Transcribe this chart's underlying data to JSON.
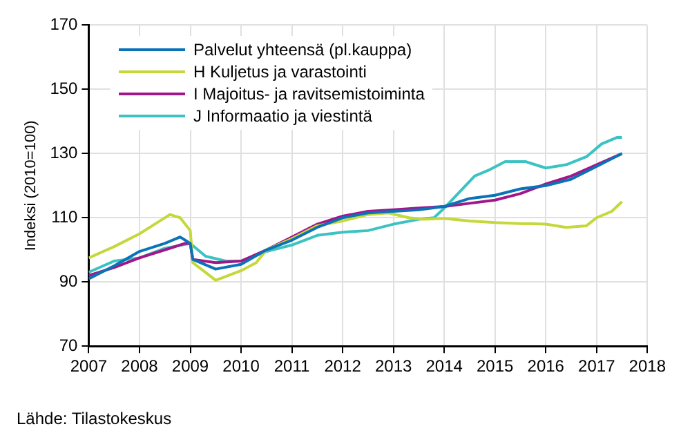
{
  "chart_data": {
    "type": "line",
    "ylabel": "Indeksi (2010=100)",
    "annotations": [
      "Lähde: Tilastokeskus"
    ],
    "xlim": [
      2007,
      2018
    ],
    "xticks": [
      2007,
      2008,
      2009,
      2010,
      2011,
      2012,
      2013,
      2014,
      2015,
      2016,
      2017,
      2018
    ],
    "ylim": [
      70,
      170
    ],
    "yticks": [
      70,
      90,
      110,
      130,
      150,
      170
    ],
    "grid": true,
    "legend": "top left",
    "marker": "none",
    "line_style": "solid",
    "series": [
      {
        "name": "Palvelut yhteensä (pl.kauppa)",
        "color": "#0a73b8",
        "x": [
          2007,
          2007.5,
          2008,
          2008.5,
          2008.8,
          2009,
          2009.05,
          2009.5,
          2010,
          2010.5,
          2011,
          2011.5,
          2012,
          2012.5,
          2013,
          2013.5,
          2014,
          2014.5,
          2015,
          2015.5,
          2016,
          2016.5,
          2017,
          2017.5
        ],
        "values": [
          91,
          95,
          99.5,
          102,
          104,
          102,
          97,
          94,
          95.5,
          100,
          103,
          107,
          110,
          111.5,
          112,
          112.5,
          113.5,
          116,
          117,
          119,
          120,
          122,
          126,
          130
        ]
      },
      {
        "name": "H Kuljetus ja varastointi",
        "color": "#c4d83a",
        "x": [
          2007,
          2007.5,
          2008,
          2008.3,
          2008.6,
          2008.8,
          2009,
          2009.05,
          2009.3,
          2009.5,
          2010,
          2010.3,
          2010.5,
          2011,
          2011.5,
          2012,
          2012.5,
          2012.9,
          2013.3,
          2013.6,
          2014,
          2014.5,
          2015,
          2015.5,
          2016,
          2016.4,
          2016.8,
          2017,
          2017.3,
          2017.5
        ],
        "values": [
          97.5,
          101,
          105,
          108,
          111,
          110,
          106,
          96,
          93,
          90.5,
          93.5,
          96,
          100,
          103.5,
          107.5,
          109,
          111,
          111.5,
          110,
          109.5,
          109.8,
          109,
          108.5,
          108.2,
          108,
          107,
          107.5,
          110,
          112,
          115
        ]
      },
      {
        "name": "I Majoitus- ja ravitsemistoiminta",
        "color": "#a3168a",
        "x": [
          2007,
          2007.5,
          2008,
          2008.5,
          2008.9,
          2009,
          2009.05,
          2009.5,
          2010,
          2010.5,
          2011,
          2011.5,
          2012,
          2012.5,
          2013,
          2013.5,
          2014,
          2014.5,
          2015,
          2015.5,
          2016,
          2016.5,
          2017,
          2017.5
        ],
        "values": [
          92,
          94.5,
          97.5,
          100,
          102,
          102,
          97,
          96,
          96.5,
          100,
          104,
          108,
          110.5,
          112,
          112.5,
          113,
          113.5,
          114.5,
          115.5,
          117.5,
          120.5,
          123,
          126.5,
          130
        ]
      },
      {
        "name": "J Informaatio ja viestintä",
        "color": "#3cc2c2",
        "x": [
          2007,
          2007.5,
          2008,
          2008.5,
          2009,
          2009.3,
          2009.7,
          2010,
          2010.5,
          2011,
          2011.5,
          2012,
          2012.5,
          2013,
          2013.5,
          2013.8,
          2014,
          2014.3,
          2014.6,
          2014.9,
          2015.2,
          2015.6,
          2016,
          2016.4,
          2016.8,
          2017.1,
          2017.4,
          2017.5
        ],
        "values": [
          93,
          96.5,
          97.5,
          100.5,
          102,
          98,
          96.5,
          96.5,
          99.5,
          101.5,
          104.5,
          105.5,
          106,
          108,
          109.5,
          110,
          113,
          118,
          123,
          125,
          127.5,
          127.5,
          125.5,
          126.5,
          129,
          133,
          135,
          135
        ]
      }
    ]
  }
}
